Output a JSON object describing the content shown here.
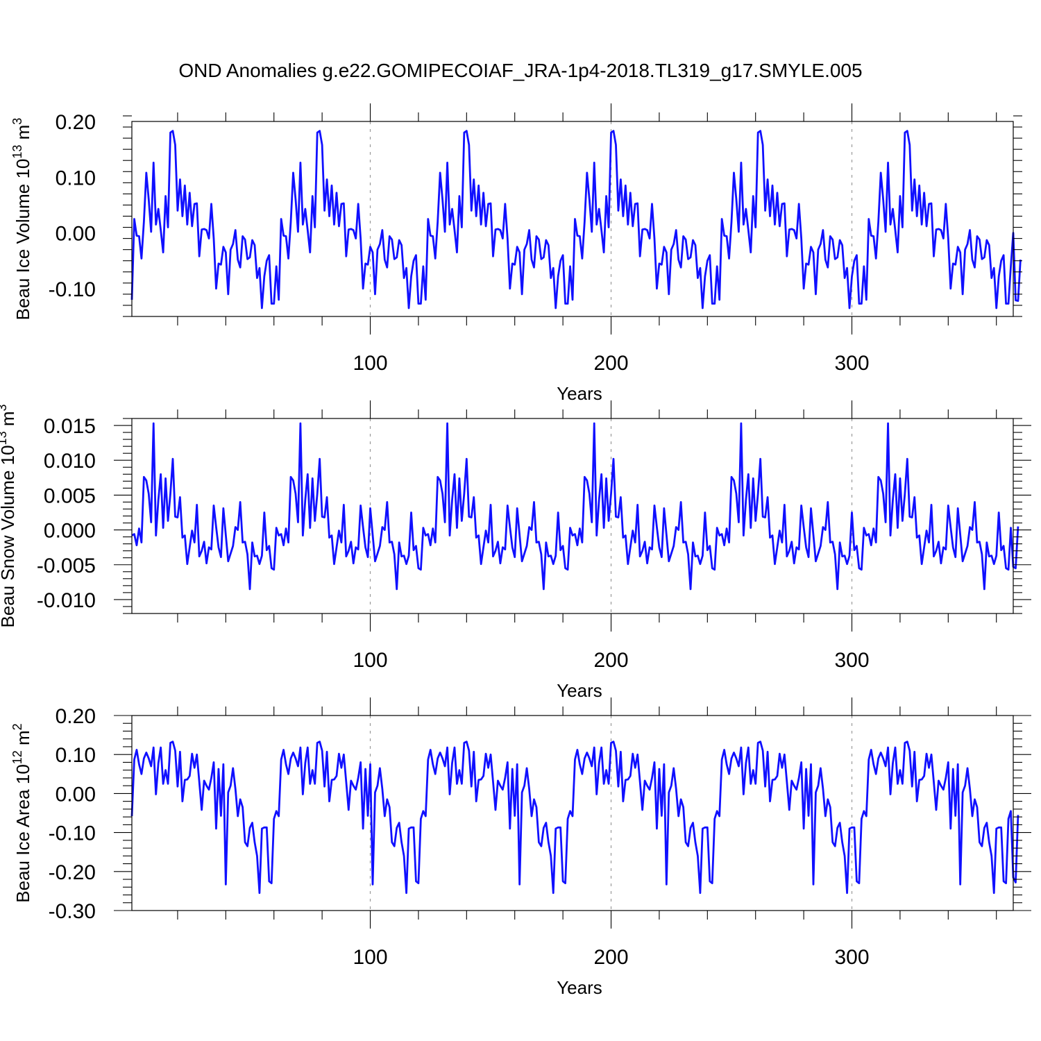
{
  "title": "OND Anomalies g.e22.GOMIPECOIAF_JRA-1p4-2018.TL319_g17.SMYLE.005",
  "chart_data": [
    {
      "type": "line",
      "name": "ice-volume",
      "ylabel": "Beau Ice Volume 10",
      "ylabel_exp": "13",
      "ylabel_unit": " m",
      "ylabel_unit_exp": "3",
      "xlabel": "Years",
      "xlim": [
        1,
        367
      ],
      "ylim": [
        -0.15,
        0.2
      ],
      "xticks": [
        100,
        200,
        300
      ],
      "xtick_labels": [
        "100",
        "200",
        "300"
      ],
      "yticks": [
        0.2,
        0.1,
        0.0,
        -0.1
      ],
      "ytick_labels": [
        "0.20",
        "0.10",
        "0.00",
        "-0.10"
      ],
      "ygrid": false,
      "xgrid": "dashed at major ticks",
      "period": 61,
      "pattern": [
        -0.12,
        0.025,
        -0.005,
        -0.006,
        -0.046,
        0.02,
        0.108,
        0.06,
        0.002,
        0.126,
        0.015,
        0.043,
        0.005,
        -0.035,
        0.066,
        0.01,
        0.18,
        0.183,
        0.158,
        0.04,
        0.096,
        0.03,
        0.085,
        0.015,
        0.072,
        0.012,
        0.052,
        0.053,
        -0.042,
        0.006,
        0.007,
        0.005,
        -0.01,
        0.052,
        -0.01,
        -0.1,
        -0.055,
        -0.057,
        -0.025,
        -0.035,
        -0.11,
        -0.03,
        -0.02,
        0.005,
        -0.048,
        -0.062,
        -0.006,
        -0.012,
        -0.047,
        -0.044,
        -0.013,
        -0.022,
        -0.081,
        -0.063,
        -0.135,
        -0.078,
        -0.05,
        -0.04,
        -0.127,
        -0.127,
        -0.06
      ],
      "tail": [
        0.0,
        -0.121,
        -0.122,
        -0.048
      ]
    },
    {
      "type": "line",
      "name": "snow-volume",
      "ylabel": "Beau Snow Volume 10",
      "ylabel_exp": "13",
      "ylabel_unit": " m",
      "ylabel_unit_exp": "3",
      "xlabel": "Years",
      "xlim": [
        1,
        367
      ],
      "ylim": [
        -0.012,
        0.016
      ],
      "xticks": [
        100,
        200,
        300
      ],
      "xtick_labels": [
        "100",
        "200",
        "300"
      ],
      "yticks": [
        0.015,
        0.01,
        0.005,
        0.0,
        -0.005,
        -0.01
      ],
      "ytick_labels": [
        "0.015",
        "0.010",
        "0.005",
        "0.000",
        "-0.005",
        "-0.010"
      ],
      "ygrid": false,
      "xgrid": "dashed at major ticks",
      "period": 61,
      "pattern": [
        -0.0008,
        -0.0006,
        -0.0022,
        0.0002,
        -0.0018,
        0.0076,
        0.0071,
        0.0052,
        0.0011,
        0.0153,
        -0.0008,
        0.0043,
        0.008,
        0.0003,
        0.0074,
        0.0013,
        0.0052,
        0.0102,
        0.0019,
        0.0018,
        0.0047,
        -0.0011,
        -0.0008,
        -0.0049,
        -0.0025,
        -0.0001,
        -0.0018,
        0.0036,
        -0.0038,
        -0.003,
        -0.0017,
        -0.0048,
        -0.0025,
        -0.0028,
        0.0035,
        0.0004,
        -0.0025,
        -0.0039,
        0.0031,
        -0.0007,
        -0.0045,
        -0.0034,
        -0.0023,
        0.0004,
        0.0,
        0.004,
        -0.0018,
        -0.0017,
        -0.0035,
        -0.0085,
        -0.0018,
        -0.0038,
        -0.0037,
        -0.0049,
        -0.0037,
        0.0025,
        -0.0029,
        -0.0023,
        -0.0055,
        -0.0057,
        0.0003
      ],
      "tail": [
        -0.0053,
        -0.0055,
        0.0005
      ]
    },
    {
      "type": "line",
      "name": "ice-area",
      "ylabel": "Beau Ice Area 10",
      "ylabel_exp": "12",
      "ylabel_unit": " m",
      "ylabel_unit_exp": "2",
      "xlabel": "Years",
      "xlim": [
        1,
        367
      ],
      "ylim": [
        -0.3,
        0.2
      ],
      "xticks": [
        100,
        200,
        300
      ],
      "xtick_labels": [
        "100",
        "200",
        "300"
      ],
      "yticks": [
        0.2,
        0.1,
        0.0,
        -0.1,
        -0.2,
        -0.3
      ],
      "ytick_labels": [
        "0.20",
        "0.10",
        "0.00",
        "-0.10",
        "-0.20",
        "-0.30"
      ],
      "ygrid": false,
      "xgrid": "dashed at major ticks",
      "period": 61,
      "pattern": [
        -0.058,
        0.087,
        0.112,
        0.075,
        0.05,
        0.09,
        0.105,
        0.09,
        0.07,
        0.118,
        -0.002,
        0.078,
        0.118,
        0.025,
        0.06,
        0.025,
        0.13,
        0.133,
        0.11,
        0.018,
        0.107,
        -0.02,
        0.035,
        0.036,
        0.045,
        0.102,
        0.066,
        0.1,
        0.03,
        -0.042,
        0.033,
        0.02,
        0.01,
        0.04,
        0.08,
        -0.09,
        0.063,
        -0.057,
        0.075,
        -0.233,
        0.003,
        0.02,
        0.065,
        0.012,
        -0.058,
        -0.015,
        -0.035,
        -0.125,
        -0.135,
        -0.088,
        -0.075,
        -0.125,
        -0.16,
        -0.255,
        -0.09,
        -0.087,
        -0.087,
        -0.225,
        -0.23,
        -0.065,
        -0.045
      ],
      "tail": [
        -0.215,
        -0.228,
        -0.055
      ]
    }
  ]
}
